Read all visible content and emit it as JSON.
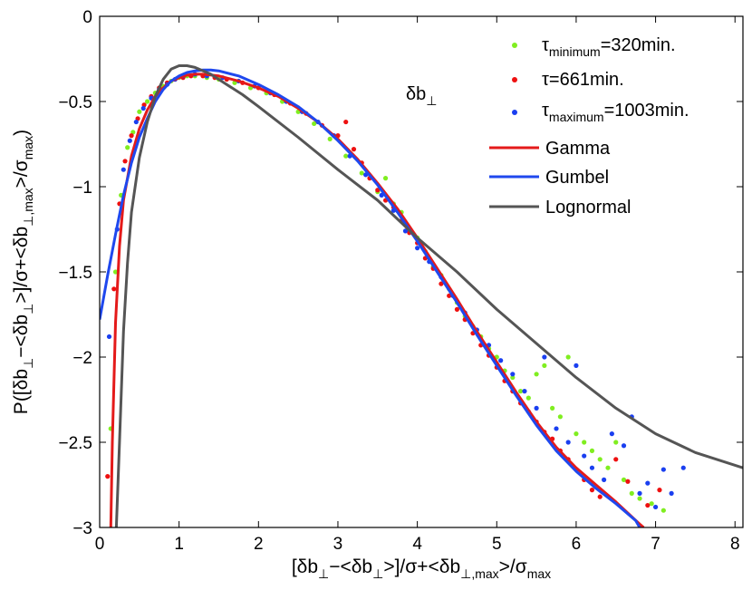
{
  "chart_data": {
    "type": "scatter",
    "title": "",
    "xlabel": {
      "pre": "[δb",
      "s1": "⊥",
      "mid1": "−<δb",
      "s2": "⊥",
      "mid2": ">]/σ+<δb",
      "s3": "⊥,max",
      "mid3": ">/σ",
      "s4": "max"
    },
    "ylabel": {
      "pre": "P([δb",
      "s1": "⊥",
      "mid1": "−<δb",
      "s2": "⊥",
      "mid2": ">]/σ+<δb",
      "s3": "⊥,max",
      "mid3": ">/σ",
      "s4": "max",
      "post": ")"
    },
    "xlim": [
      0,
      8.1
    ],
    "ylim": [
      -3,
      0
    ],
    "xticks": [
      0,
      1,
      2,
      3,
      4,
      5,
      6,
      7,
      8
    ],
    "yticks": [
      0,
      -0.5,
      -1,
      -1.5,
      -2,
      -2.5,
      -3
    ],
    "xtick_labels": [
      "0",
      "1",
      "2",
      "3",
      "4",
      "5",
      "6",
      "7",
      "8"
    ],
    "ytick_labels": [
      "0",
      "−0.5",
      "−1",
      "−1.5",
      "−2",
      "−2.5",
      "−3"
    ],
    "annotation": {
      "base": "δb",
      "sub": "⊥"
    },
    "legend_position": "top-right",
    "colors": {
      "green": "#80ee20",
      "red": "#ee1010",
      "blue": "#1a3ff0",
      "gamma": "#e41a1a",
      "gumbel": "#1f48ee",
      "lognormal": "#555555"
    },
    "scatter_series": [
      {
        "name": "τminimum=320min.",
        "label": {
          "base": "τ",
          "sub": "minimum",
          "post": "=320min."
        },
        "color": "#80ee20",
        "points": [
          [
            0.14,
            -2.42
          ],
          [
            0.2,
            -1.5
          ],
          [
            0.27,
            -1.05
          ],
          [
            0.35,
            -0.77
          ],
          [
            0.42,
            -0.68
          ],
          [
            0.5,
            -0.56
          ],
          [
            0.6,
            -0.5
          ],
          [
            0.7,
            -0.45
          ],
          [
            0.8,
            -0.41
          ],
          [
            0.9,
            -0.38
          ],
          [
            1.0,
            -0.36
          ],
          [
            1.1,
            -0.35
          ],
          [
            1.2,
            -0.35
          ],
          [
            1.35,
            -0.36
          ],
          [
            1.5,
            -0.37
          ],
          [
            1.7,
            -0.39
          ],
          [
            1.9,
            -0.42
          ],
          [
            2.1,
            -0.45
          ],
          [
            2.3,
            -0.5
          ],
          [
            2.5,
            -0.56
          ],
          [
            2.7,
            -0.63
          ],
          [
            2.9,
            -0.72
          ],
          [
            3.1,
            -0.82
          ],
          [
            3.3,
            -0.92
          ],
          [
            3.5,
            -1.03
          ],
          [
            3.6,
            -0.95
          ],
          [
            3.7,
            -1.1
          ],
          [
            3.8,
            -1.15
          ],
          [
            3.9,
            -1.25
          ],
          [
            4.0,
            -1.3
          ],
          [
            4.1,
            -1.38
          ],
          [
            4.2,
            -1.47
          ],
          [
            4.3,
            -1.52
          ],
          [
            4.4,
            -1.6
          ],
          [
            4.5,
            -1.68
          ],
          [
            4.6,
            -1.76
          ],
          [
            4.7,
            -1.82
          ],
          [
            4.8,
            -1.88
          ],
          [
            4.9,
            -1.95
          ],
          [
            5.0,
            -2.0
          ],
          [
            5.1,
            -2.08
          ],
          [
            5.2,
            -2.12
          ],
          [
            5.3,
            -2.2
          ],
          [
            5.4,
            -2.24
          ],
          [
            5.5,
            -2.1
          ],
          [
            5.6,
            -2.05
          ],
          [
            5.7,
            -2.3
          ],
          [
            5.8,
            -2.35
          ],
          [
            5.9,
            -2.0
          ],
          [
            6.0,
            -2.45
          ],
          [
            6.1,
            -2.5
          ],
          [
            6.2,
            -2.55
          ],
          [
            6.3,
            -2.6
          ],
          [
            6.4,
            -2.65
          ],
          [
            6.5,
            -2.5
          ],
          [
            6.6,
            -2.72
          ],
          [
            6.7,
            -2.8
          ],
          [
            6.8,
            -2.83
          ],
          [
            6.95,
            -2.86
          ],
          [
            7.1,
            -2.9
          ]
        ]
      },
      {
        "name": "τ=661min.",
        "label": {
          "base": "τ",
          "sub": "",
          "post": "=661min."
        },
        "color": "#ee1010",
        "points": [
          [
            0.1,
            -2.7
          ],
          [
            0.18,
            -1.6
          ],
          [
            0.25,
            -1.1
          ],
          [
            0.32,
            -0.85
          ],
          [
            0.4,
            -0.7
          ],
          [
            0.48,
            -0.6
          ],
          [
            0.56,
            -0.52
          ],
          [
            0.65,
            -0.47
          ],
          [
            0.75,
            -0.42
          ],
          [
            0.85,
            -0.39
          ],
          [
            0.95,
            -0.37
          ],
          [
            1.05,
            -0.36
          ],
          [
            1.15,
            -0.35
          ],
          [
            1.3,
            -0.35
          ],
          [
            1.45,
            -0.36
          ],
          [
            1.6,
            -0.37
          ],
          [
            1.8,
            -0.39
          ],
          [
            2.0,
            -0.42
          ],
          [
            2.2,
            -0.46
          ],
          [
            2.4,
            -0.51
          ],
          [
            2.6,
            -0.57
          ],
          [
            2.8,
            -0.64
          ],
          [
            3.0,
            -0.7
          ],
          [
            3.1,
            -0.62
          ],
          [
            3.2,
            -0.78
          ],
          [
            3.3,
            -0.86
          ],
          [
            3.4,
            -0.95
          ],
          [
            3.5,
            -1.02
          ],
          [
            3.6,
            -1.08
          ],
          [
            3.7,
            -1.12
          ],
          [
            3.8,
            -1.2
          ],
          [
            3.9,
            -1.27
          ],
          [
            4.0,
            -1.33
          ],
          [
            4.1,
            -1.42
          ],
          [
            4.2,
            -1.48
          ],
          [
            4.3,
            -1.57
          ],
          [
            4.4,
            -1.64
          ],
          [
            4.5,
            -1.72
          ],
          [
            4.6,
            -1.78
          ],
          [
            4.7,
            -1.86
          ],
          [
            4.8,
            -1.93
          ],
          [
            4.9,
            -1.99
          ],
          [
            5.0,
            -2.06
          ],
          [
            5.1,
            -2.14
          ],
          [
            5.2,
            -2.2
          ],
          [
            5.3,
            -2.27
          ],
          [
            5.4,
            -2.32
          ],
          [
            5.5,
            -2.38
          ],
          [
            5.6,
            -2.44
          ],
          [
            5.7,
            -2.48
          ],
          [
            5.8,
            -2.55
          ],
          [
            5.9,
            -2.6
          ],
          [
            6.0,
            -2.66
          ],
          [
            6.1,
            -2.72
          ],
          [
            6.2,
            -2.78
          ],
          [
            6.3,
            -2.82
          ],
          [
            6.5,
            -2.6
          ],
          [
            6.65,
            -2.73
          ],
          [
            6.9,
            -2.87
          ],
          [
            7.05,
            -2.78
          ]
        ]
      },
      {
        "name": "τmaximum=1003min.",
        "label": {
          "base": "τ",
          "sub": "maximum",
          "post": "=1003min."
        },
        "color": "#1a3ff0",
        "points": [
          [
            0.12,
            -1.88
          ],
          [
            0.22,
            -1.25
          ],
          [
            0.3,
            -0.9
          ],
          [
            0.38,
            -0.73
          ],
          [
            0.46,
            -0.62
          ],
          [
            0.55,
            -0.54
          ],
          [
            0.65,
            -0.48
          ],
          [
            0.75,
            -0.43
          ],
          [
            0.85,
            -0.4
          ],
          [
            0.95,
            -0.37
          ],
          [
            1.05,
            -0.35
          ],
          [
            1.2,
            -0.34
          ],
          [
            1.35,
            -0.35
          ],
          [
            1.55,
            -0.36
          ],
          [
            1.75,
            -0.38
          ],
          [
            1.95,
            -0.41
          ],
          [
            2.15,
            -0.45
          ],
          [
            2.35,
            -0.5
          ],
          [
            2.55,
            -0.56
          ],
          [
            2.75,
            -0.62
          ],
          [
            2.95,
            -0.7
          ],
          [
            3.15,
            -0.82
          ],
          [
            3.35,
            -0.93
          ],
          [
            3.55,
            -1.05
          ],
          [
            3.7,
            -1.14
          ],
          [
            3.85,
            -1.26
          ],
          [
            4.0,
            -1.36
          ],
          [
            4.15,
            -1.44
          ],
          [
            4.3,
            -1.53
          ],
          [
            4.45,
            -1.64
          ],
          [
            4.6,
            -1.74
          ],
          [
            4.75,
            -1.84
          ],
          [
            4.9,
            -1.93
          ],
          [
            5.05,
            -2.02
          ],
          [
            5.2,
            -2.1
          ],
          [
            5.35,
            -2.2
          ],
          [
            5.5,
            -2.3
          ],
          [
            5.6,
            -2.0
          ],
          [
            5.75,
            -2.42
          ],
          [
            5.9,
            -2.5
          ],
          [
            6.0,
            -2.05
          ],
          [
            6.1,
            -2.58
          ],
          [
            6.2,
            -2.65
          ],
          [
            6.35,
            -2.72
          ],
          [
            6.45,
            -2.45
          ],
          [
            6.6,
            -2.52
          ],
          [
            6.7,
            -2.35
          ],
          [
            6.8,
            -2.8
          ],
          [
            6.9,
            -2.74
          ],
          [
            7.0,
            -2.88
          ],
          [
            7.1,
            -2.66
          ],
          [
            7.2,
            -2.8
          ],
          [
            7.35,
            -2.65
          ]
        ]
      }
    ],
    "line_series": [
      {
        "name": "Gamma",
        "color": "#e41a1a",
        "points": [
          [
            0.14,
            -3.0
          ],
          [
            0.16,
            -2.5
          ],
          [
            0.2,
            -1.8
          ],
          [
            0.25,
            -1.35
          ],
          [
            0.3,
            -1.08
          ],
          [
            0.4,
            -0.82
          ],
          [
            0.5,
            -0.66
          ],
          [
            0.6,
            -0.55
          ],
          [
            0.7,
            -0.47
          ],
          [
            0.8,
            -0.42
          ],
          [
            0.9,
            -0.38
          ],
          [
            1.0,
            -0.36
          ],
          [
            1.1,
            -0.345
          ],
          [
            1.2,
            -0.34
          ],
          [
            1.3,
            -0.34
          ],
          [
            1.5,
            -0.35
          ],
          [
            1.75,
            -0.38
          ],
          [
            2.0,
            -0.42
          ],
          [
            2.25,
            -0.47
          ],
          [
            2.5,
            -0.54
          ],
          [
            2.75,
            -0.62
          ],
          [
            3.0,
            -0.72
          ],
          [
            3.25,
            -0.84
          ],
          [
            3.5,
            -0.98
          ],
          [
            3.75,
            -1.13
          ],
          [
            4.0,
            -1.3
          ],
          [
            4.25,
            -1.48
          ],
          [
            4.5,
            -1.66
          ],
          [
            4.75,
            -1.85
          ],
          [
            5.0,
            -2.03
          ],
          [
            5.25,
            -2.21
          ],
          [
            5.5,
            -2.38
          ],
          [
            5.75,
            -2.53
          ],
          [
            6.0,
            -2.65
          ],
          [
            6.25,
            -2.75
          ],
          [
            6.5,
            -2.85
          ],
          [
            6.8,
            -2.98
          ],
          [
            6.85,
            -3.0
          ]
        ]
      },
      {
        "name": "Gumbel",
        "color": "#1f48ee",
        "points": [
          [
            0.0,
            -1.78
          ],
          [
            0.1,
            -1.52
          ],
          [
            0.2,
            -1.28
          ],
          [
            0.3,
            -1.05
          ],
          [
            0.4,
            -0.86
          ],
          [
            0.5,
            -0.71
          ],
          [
            0.6,
            -0.6
          ],
          [
            0.7,
            -0.5
          ],
          [
            0.8,
            -0.43
          ],
          [
            0.9,
            -0.38
          ],
          [
            1.0,
            -0.35
          ],
          [
            1.1,
            -0.33
          ],
          [
            1.2,
            -0.32
          ],
          [
            1.3,
            -0.315
          ],
          [
            1.4,
            -0.315
          ],
          [
            1.5,
            -0.32
          ],
          [
            1.75,
            -0.35
          ],
          [
            2.0,
            -0.4
          ],
          [
            2.25,
            -0.46
          ],
          [
            2.5,
            -0.53
          ],
          [
            2.75,
            -0.62
          ],
          [
            3.0,
            -0.73
          ],
          [
            3.25,
            -0.85
          ],
          [
            3.5,
            -0.99
          ],
          [
            3.75,
            -1.15
          ],
          [
            4.0,
            -1.32
          ],
          [
            4.25,
            -1.5
          ],
          [
            4.5,
            -1.68
          ],
          [
            4.75,
            -1.87
          ],
          [
            5.0,
            -2.05
          ],
          [
            5.25,
            -2.23
          ],
          [
            5.5,
            -2.4
          ],
          [
            5.75,
            -2.55
          ],
          [
            6.0,
            -2.67
          ],
          [
            6.25,
            -2.77
          ],
          [
            6.5,
            -2.86
          ],
          [
            6.75,
            -2.96
          ],
          [
            6.8,
            -3.0
          ]
        ]
      },
      {
        "name": "Lognormal",
        "color": "#555555",
        "points": [
          [
            0.21,
            -3.0
          ],
          [
            0.25,
            -2.5
          ],
          [
            0.3,
            -1.85
          ],
          [
            0.35,
            -1.45
          ],
          [
            0.4,
            -1.15
          ],
          [
            0.5,
            -0.83
          ],
          [
            0.6,
            -0.62
          ],
          [
            0.7,
            -0.47
          ],
          [
            0.8,
            -0.37
          ],
          [
            0.9,
            -0.31
          ],
          [
            1.0,
            -0.29
          ],
          [
            1.1,
            -0.29
          ],
          [
            1.2,
            -0.3
          ],
          [
            1.4,
            -0.34
          ],
          [
            1.6,
            -0.4
          ],
          [
            1.8,
            -0.46
          ],
          [
            2.0,
            -0.53
          ],
          [
            2.5,
            -0.71
          ],
          [
            3.0,
            -0.9
          ],
          [
            3.5,
            -1.08
          ],
          [
            4.0,
            -1.3
          ],
          [
            4.5,
            -1.5
          ],
          [
            5.0,
            -1.72
          ],
          [
            5.5,
            -1.92
          ],
          [
            6.0,
            -2.12
          ],
          [
            6.5,
            -2.3
          ],
          [
            7.0,
            -2.45
          ],
          [
            7.5,
            -2.56
          ],
          [
            8.1,
            -2.65
          ]
        ]
      }
    ]
  }
}
